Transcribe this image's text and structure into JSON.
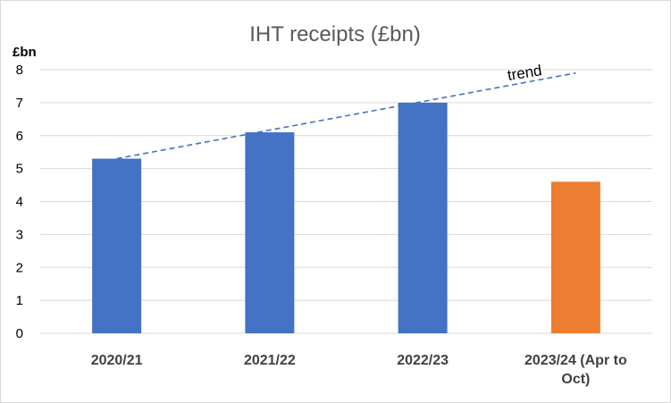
{
  "chart_data": {
    "type": "bar",
    "title": "IHT receipts (£bn)",
    "ylabel": "£bn",
    "categories": [
      [
        "2020/21"
      ],
      [
        "2021/22"
      ],
      [
        "2022/23"
      ],
      [
        "2023/24 (Apr to",
        "Oct)"
      ]
    ],
    "values": [
      5.3,
      6.1,
      7.0,
      4.6
    ],
    "bar_colors": [
      "#4472C4",
      "#4472C4",
      "#4472C4",
      "#ED7D31"
    ],
    "ylim": [
      0,
      8
    ],
    "yticks": [
      0,
      1,
      2,
      3,
      4,
      5,
      6,
      7,
      8
    ],
    "grid": true,
    "trendline": {
      "label": "trend",
      "start": {
        "category_index": 0,
        "value": 5.3
      },
      "end": {
        "category_index": 3,
        "value": 7.9
      },
      "color": "#4472C4",
      "style": "dashed"
    }
  }
}
